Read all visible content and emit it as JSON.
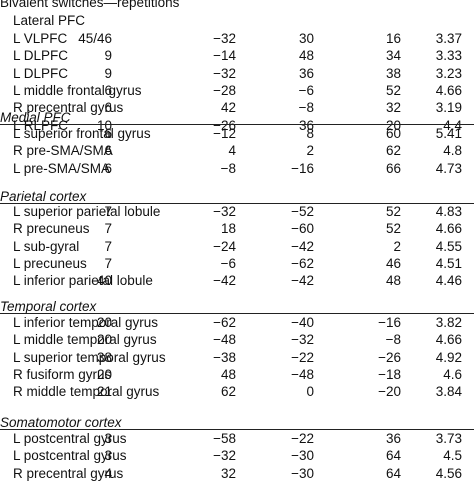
{
  "header": {
    "title": "Bivalent switches—repetitions",
    "subtitle": "Lateral PFC"
  },
  "sections": [
    {
      "title": "",
      "rows": [
        {
          "region": "L VLPFC",
          "ba": "45/46",
          "x": "−32",
          "y": "30",
          "z": "16",
          "value": "3.37"
        },
        {
          "region": "L DLPFC",
          "ba": "9",
          "x": "−14",
          "y": "48",
          "z": "34",
          "value": "3.33"
        },
        {
          "region": "L DLPFC",
          "ba": "9",
          "x": "−32",
          "y": "36",
          "z": "38",
          "value": "3.23"
        },
        {
          "region": "L middle frontal gyrus",
          "ba": "6",
          "x": "−28",
          "y": "−6",
          "z": "52",
          "value": "4.66"
        },
        {
          "region": "R precentral gyrus",
          "ba": "6",
          "x": "42",
          "y": "−8",
          "z": "32",
          "value": "3.19"
        },
        {
          "region": "L RLPFC",
          "ba": "10",
          "x": "−26",
          "y": "36",
          "z": "20",
          "value": "4.4"
        }
      ]
    },
    {
      "title": "Medial PFC",
      "rows": [
        {
          "region": "L superior frontal gyrus",
          "ba": "6",
          "x": "−12",
          "y": "8",
          "z": "60",
          "value": "5.41"
        },
        {
          "region": "R pre-SMA/SMA",
          "ba": "6",
          "x": "4",
          "y": "2",
          "z": "62",
          "value": "4.8"
        },
        {
          "region": "L pre-SMA/SMA",
          "ba": "6",
          "x": "−8",
          "y": "−16",
          "z": "66",
          "value": "4.73"
        }
      ]
    },
    {
      "title": "Parietal cortex",
      "rows": [
        {
          "region": "L superior parietal lobule",
          "ba": "7",
          "x": "−32",
          "y": "−52",
          "z": "52",
          "value": "4.83"
        },
        {
          "region": "R precuneus",
          "ba": "7",
          "x": "18",
          "y": "−60",
          "z": "52",
          "value": "4.66"
        },
        {
          "region": "L sub-gyral",
          "ba": "7",
          "x": "−24",
          "y": "−42",
          "z": "2",
          "value": "4.55"
        },
        {
          "region": "L precuneus",
          "ba": "7",
          "x": "−6",
          "y": "−62",
          "z": "46",
          "value": "4.51"
        },
        {
          "region": "L inferior parietal lobule",
          "ba": "40",
          "x": "−42",
          "y": "−42",
          "z": "48",
          "value": "4.46"
        }
      ]
    },
    {
      "title": "Temporal cortex",
      "rows": [
        {
          "region": "L inferior temporal gyrus",
          "ba": "20",
          "x": "−62",
          "y": "−40",
          "z": "−16",
          "value": "3.82"
        },
        {
          "region": "L middle temporal gyrus",
          "ba": "20",
          "x": "−48",
          "y": "−32",
          "z": "−8",
          "value": "4.66"
        },
        {
          "region": "L superior temporal gyrus",
          "ba": "38",
          "x": "−38",
          "y": "−22",
          "z": "−26",
          "value": "4.92"
        },
        {
          "region": "R fusiform gyrus",
          "ba": "20",
          "x": "48",
          "y": "−48",
          "z": "−18",
          "value": "4.6"
        },
        {
          "region": "R middle temporal gyrus",
          "ba": "21",
          "x": "62",
          "y": "0",
          "z": "−20",
          "value": "3.84"
        }
      ]
    },
    {
      "title": "Somatomotor cortex",
      "rows": [
        {
          "region": "L postcentral gyrus",
          "ba": "3",
          "x": "−58",
          "y": "−22",
          "z": "36",
          "value": "3.73"
        },
        {
          "region": "L postcentral gyrus",
          "ba": "3",
          "x": "−32",
          "y": "−30",
          "z": "64",
          "value": "4.5"
        },
        {
          "region": "R precentral gyrus",
          "ba": "4",
          "x": "32",
          "y": "−30",
          "z": "64",
          "value": "4.56"
        }
      ]
    }
  ]
}
